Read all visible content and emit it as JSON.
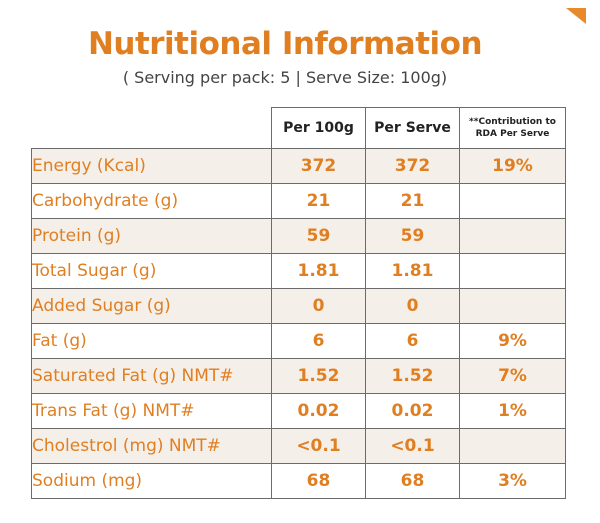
{
  "title": "Nutritional Information",
  "subtitle": "( Serving per pack: 5 | Serve Size: 100g)",
  "headers": {
    "per_100g": "Per 100g",
    "per_serve": "Per Serve",
    "rda": "**Contribution to RDA Per Serve"
  },
  "rows": [
    {
      "name": "Energy (Kcal)",
      "per_100g": "372",
      "per_serve": "372",
      "rda": "19%"
    },
    {
      "name": "Carbohydrate (g)",
      "per_100g": "21",
      "per_serve": "21",
      "rda": ""
    },
    {
      "name": "Protein (g)",
      "per_100g": "59",
      "per_serve": "59",
      "rda": ""
    },
    {
      "name": "Total Sugar (g)",
      "per_100g": "1.81",
      "per_serve": "1.81",
      "rda": ""
    },
    {
      "name": "Added Sugar (g)",
      "per_100g": "0",
      "per_serve": "0",
      "rda": ""
    },
    {
      "name": "Fat (g)",
      "per_100g": "6",
      "per_serve": "6",
      "rda": "9%"
    },
    {
      "name": "Saturated Fat (g) NMT#",
      "per_100g": "1.52",
      "per_serve": "1.52",
      "rda": "7%"
    },
    {
      "name": "Trans Fat (g) NMT#",
      "per_100g": "0.02",
      "per_serve": "0.02",
      "rda": "1%"
    },
    {
      "name": "Cholestrol (mg) NMT#",
      "per_100g": "<0.1",
      "per_serve": "<0.1",
      "rda": ""
    },
    {
      "name": "Sodium (mg)",
      "per_100g": "68",
      "per_serve": "68",
      "rda": "3%"
    }
  ],
  "colors": {
    "accent": "#e07f22",
    "row_shade": "#f4efe8",
    "border": "#6b6b6b"
  }
}
